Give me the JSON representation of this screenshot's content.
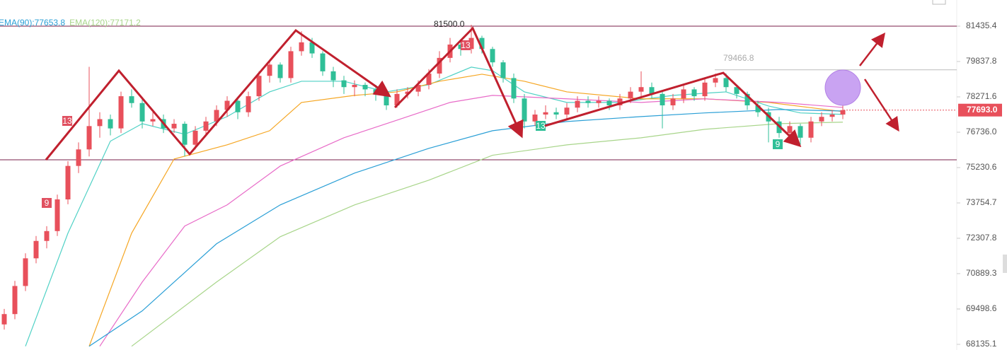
{
  "chart_data": {
    "type": "candlestick",
    "log_scale": true,
    "ylim": [
      67919,
      82638
    ],
    "yticks": [
      81435.4,
      79837.8,
      78271.6,
      {
        "value": 76736,
        "label": "76736.0"
      },
      75230.6,
      73754.7,
      72307.8,
      70889.3,
      69498.6,
      68135.1
    ],
    "up_color": "#e8505b",
    "down_color": "#2fbf97",
    "ohlc": [
      [
        68900,
        69500,
        68700,
        69300
      ],
      [
        69300,
        70600,
        69100,
        70400
      ],
      [
        70400,
        71700,
        70200,
        71500
      ],
      [
        71500,
        72400,
        71300,
        72200
      ],
      [
        72200,
        72800,
        71900,
        72600
      ],
      [
        72600,
        74100,
        72400,
        73900
      ],
      [
        73900,
        75500,
        73700,
        75300
      ],
      [
        75300,
        76300,
        75000,
        76000
      ],
      [
        76000,
        79600,
        75700,
        77000
      ],
      [
        77000,
        77600,
        76500,
        77300
      ],
      [
        77300,
        77500,
        76600,
        76900
      ],
      [
        76900,
        78500,
        76700,
        78300
      ],
      [
        78300,
        78600,
        77800,
        78000
      ],
      [
        78000,
        78200,
        76900,
        77200
      ],
      [
        77200,
        77600,
        77000,
        77300
      ],
      [
        77300,
        77500,
        76700,
        76900
      ],
      [
        76900,
        77300,
        76700,
        77100
      ],
      [
        77100,
        77200,
        75700,
        76200
      ],
      [
        76200,
        77000,
        76000,
        76800
      ],
      [
        76800,
        77400,
        76600,
        77200
      ],
      [
        77200,
        77900,
        77000,
        77700
      ],
      [
        77700,
        78300,
        77400,
        78100
      ],
      [
        78100,
        78200,
        77300,
        77600
      ],
      [
        77600,
        78500,
        77400,
        78300
      ],
      [
        78300,
        79400,
        78100,
        79200
      ],
      [
        79200,
        79900,
        78900,
        79700
      ],
      [
        79700,
        79800,
        78900,
        79100
      ],
      [
        79100,
        80500,
        78900,
        80300
      ],
      [
        80300,
        81200,
        80100,
        80700
      ],
      [
        80700,
        80900,
        80000,
        80200
      ],
      [
        80200,
        80300,
        79200,
        79400
      ],
      [
        79400,
        79600,
        78700,
        79000
      ],
      [
        79000,
        79200,
        78400,
        78700
      ],
      [
        78700,
        79000,
        78300,
        78800
      ],
      [
        78800,
        78900,
        78300,
        78600
      ],
      [
        78600,
        78800,
        78100,
        78400
      ],
      [
        78400,
        78500,
        77700,
        77900
      ],
      [
        77900,
        78600,
        77800,
        78400
      ],
      [
        78400,
        78700,
        78200,
        78500
      ],
      [
        78500,
        79000,
        78300,
        78800
      ],
      [
        78800,
        79500,
        78600,
        79300
      ],
      [
        79300,
        80300,
        79100,
        80000
      ],
      [
        80000,
        80900,
        79800,
        80600
      ],
      [
        80600,
        80800,
        80100,
        80400
      ],
      [
        80400,
        81500,
        80200,
        80900
      ],
      [
        80900,
        81000,
        80200,
        80400
      ],
      [
        80400,
        80500,
        79600,
        79800
      ],
      [
        79800,
        79900,
        78900,
        79100
      ],
      [
        79100,
        79300,
        78000,
        78200
      ],
      [
        78200,
        78400,
        76900,
        77200
      ],
      [
        77200,
        77700,
        77000,
        77500
      ],
      [
        77500,
        77900,
        77300,
        77600
      ],
      [
        77600,
        77800,
        77300,
        77500
      ],
      [
        77500,
        78000,
        77300,
        77800
      ],
      [
        77800,
        78300,
        77600,
        78100
      ],
      [
        78100,
        78300,
        77800,
        78000
      ],
      [
        78000,
        78300,
        77800,
        78100
      ],
      [
        78100,
        78200,
        77700,
        77900
      ],
      [
        77900,
        78400,
        77700,
        78200
      ],
      [
        78200,
        78700,
        78000,
        78500
      ],
      [
        78500,
        79400,
        78300,
        78700
      ],
      [
        78700,
        78900,
        78200,
        78400
      ],
      [
        78400,
        78500,
        76900,
        77900
      ],
      [
        77900,
        78400,
        77700,
        78200
      ],
      [
        78200,
        78800,
        78000,
        78600
      ],
      [
        78600,
        78700,
        78100,
        78300
      ],
      [
        78300,
        79100,
        78100,
        78900
      ],
      [
        78900,
        79300,
        78700,
        79100
      ],
      [
        79100,
        79300,
        78500,
        78700
      ],
      [
        78700,
        78800,
        78200,
        78400
      ],
      [
        78400,
        78500,
        77700,
        77900
      ],
      [
        77900,
        78100,
        77400,
        77600
      ],
      [
        77600,
        77800,
        76300,
        77200
      ],
      [
        77200,
        77400,
        76500,
        76700
      ],
      [
        76700,
        77200,
        76500,
        77000
      ],
      [
        77000,
        77100,
        76200,
        76500
      ],
      [
        76500,
        77400,
        76300,
        77200
      ],
      [
        77200,
        77600,
        77000,
        77400
      ],
      [
        77400,
        77700,
        77200,
        77500
      ],
      [
        77500,
        77900,
        77300,
        77693
      ]
    ],
    "lines": [
      {
        "color": "#4fd1c5",
        "x": [
          2,
          6,
          10,
          13,
          17,
          21,
          25,
          28,
          32,
          36,
          40,
          44,
          46,
          49,
          53,
          58,
          63,
          68,
          72,
          75,
          79
        ],
        "values": [
          68062,
          72515,
          76352,
          77105,
          76648,
          77411,
          78491,
          78958,
          78958,
          78491,
          78806,
          79587,
          79431,
          78491,
          78027,
          78027,
          78337,
          78491,
          77872,
          77570,
          77508
        ]
      },
      {
        "color": "#f5a623",
        "x": [
          8,
          12,
          16,
          21,
          25,
          28,
          33,
          37,
          41,
          45,
          49,
          53,
          60,
          66,
          72,
          79
        ],
        "values": [
          68062,
          72515,
          75593,
          76195,
          76800,
          78027,
          78337,
          78491,
          78958,
          79272,
          78958,
          78491,
          78185,
          78185,
          78027,
          77626
        ]
      },
      {
        "color": "#e86bc8",
        "x": [
          9,
          13,
          17,
          21,
          26,
          32,
          37,
          42,
          46,
          53,
          60,
          66,
          73,
          79
        ],
        "values": [
          68062,
          70556,
          72803,
          73673,
          75295,
          76497,
          77258,
          78027,
          78337,
          78185,
          78027,
          78185,
          78027,
          77810
        ]
      },
      {
        "name": "EMA(90):77653.8",
        "color": "#2a9fd6",
        "x": [
          8,
          13,
          20,
          26,
          33,
          40,
          46,
          53,
          60,
          66,
          73,
          79
        ],
        "values": [
          68062,
          69425,
          72085,
          73673,
          74998,
          76044,
          76800,
          77197,
          77411,
          77570,
          77719,
          77654
        ]
      },
      {
        "name": "EMA(120):77171.2",
        "color": "#a8d58a",
        "x": [
          12,
          20,
          26,
          33,
          40,
          46,
          53,
          60,
          66,
          73,
          79
        ],
        "values": [
          68062,
          70556,
          72371,
          73673,
          74701,
          75751,
          76195,
          76497,
          76862,
          77105,
          77171
        ]
      }
    ],
    "levels": [
      {
        "value": 81435.4,
        "color": "#7a1f4a"
      },
      {
        "value": 75560,
        "color": "#7a1f4a"
      }
    ],
    "marked_level": 79466.8,
    "high_label": {
      "value": 81500,
      "label": "81500.0"
    },
    "last_price": {
      "value": 77693,
      "label": "77693.0"
    },
    "td_labels": [
      "13",
      "9",
      "13",
      "13",
      "9"
    ]
  }
}
